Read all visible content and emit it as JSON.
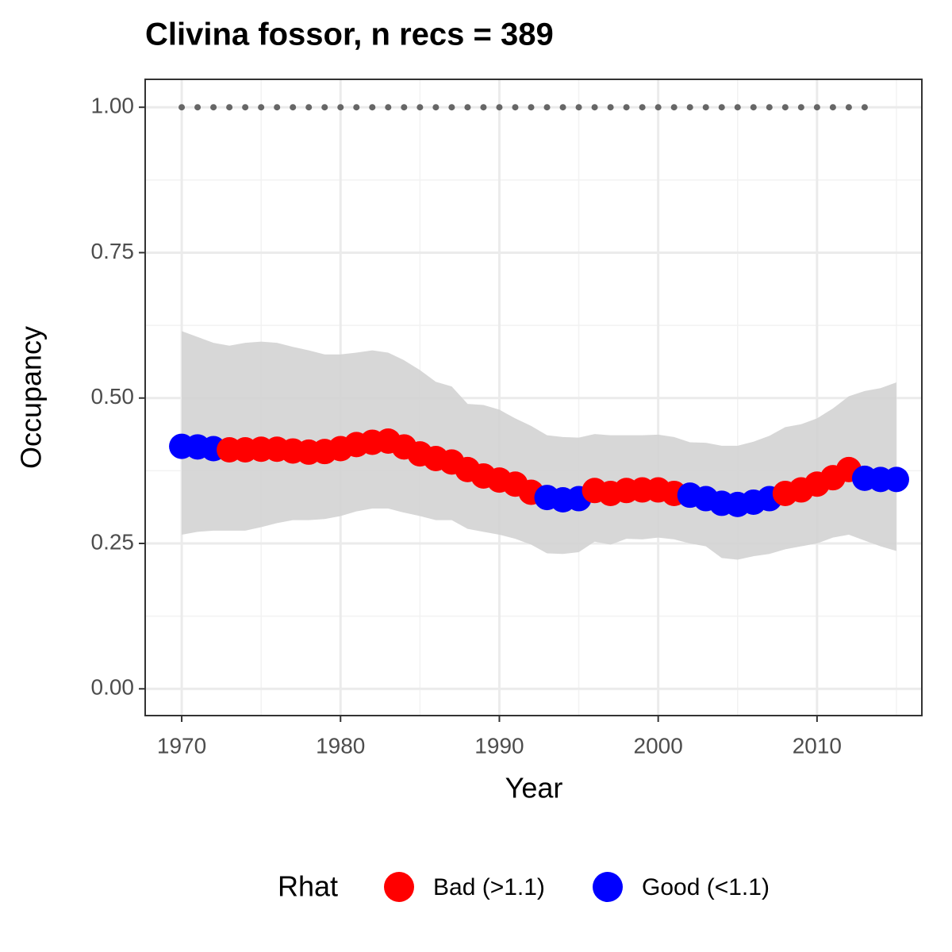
{
  "chart_data": {
    "type": "line",
    "title": "Clivina fossor, n recs = 389",
    "x_label": "Year",
    "y_label": "Occupancy",
    "x": [
      1970,
      1971,
      1972,
      1973,
      1974,
      1975,
      1976,
      1977,
      1978,
      1979,
      1980,
      1981,
      1982,
      1983,
      1984,
      1985,
      1986,
      1987,
      1988,
      1989,
      1990,
      1991,
      1992,
      1993,
      1994,
      1995,
      1996,
      1997,
      1998,
      1999,
      2000,
      2001,
      2002,
      2003,
      2004,
      2005,
      2006,
      2007,
      2008,
      2009,
      2010,
      2011,
      2012,
      2013,
      2014,
      2015
    ],
    "series": [
      {
        "values": [
          0.417,
          0.416,
          0.413,
          0.411,
          0.411,
          0.412,
          0.412,
          0.409,
          0.407,
          0.408,
          0.413,
          0.42,
          0.424,
          0.426,
          0.416,
          0.404,
          0.396,
          0.39,
          0.377,
          0.366,
          0.359,
          0.352,
          0.338,
          0.329,
          0.325,
          0.327,
          0.341,
          0.336,
          0.341,
          0.342,
          0.342,
          0.336,
          0.333,
          0.327,
          0.319,
          0.317,
          0.321,
          0.327,
          0.336,
          0.342,
          0.352,
          0.363,
          0.377,
          0.362,
          0.36,
          0.36
        ],
        "point_colors": [
          "#0000ff",
          "#0000ff",
          "#0000ff",
          "#ff0000",
          "#ff0000",
          "#ff0000",
          "#ff0000",
          "#ff0000",
          "#ff0000",
          "#ff0000",
          "#ff0000",
          "#ff0000",
          "#ff0000",
          "#ff0000",
          "#ff0000",
          "#ff0000",
          "#ff0000",
          "#ff0000",
          "#ff0000",
          "#ff0000",
          "#ff0000",
          "#ff0000",
          "#ff0000",
          "#0000ff",
          "#0000ff",
          "#0000ff",
          "#ff0000",
          "#ff0000",
          "#ff0000",
          "#ff0000",
          "#ff0000",
          "#ff0000",
          "#0000ff",
          "#0000ff",
          "#0000ff",
          "#0000ff",
          "#0000ff",
          "#0000ff",
          "#ff0000",
          "#ff0000",
          "#ff0000",
          "#ff0000",
          "#ff0000",
          "#0000ff",
          "#0000ff",
          "#0000ff"
        ]
      }
    ],
    "ribbon": {
      "color": "#d3d3d3",
      "upper": [
        0.615,
        0.605,
        0.595,
        0.59,
        0.595,
        0.597,
        0.595,
        0.588,
        0.582,
        0.575,
        0.575,
        0.578,
        0.582,
        0.578,
        0.565,
        0.548,
        0.528,
        0.52,
        0.49,
        0.488,
        0.48,
        0.465,
        0.452,
        0.436,
        0.433,
        0.432,
        0.438,
        0.436,
        0.436,
        0.436,
        0.437,
        0.433,
        0.424,
        0.423,
        0.418,
        0.418,
        0.425,
        0.435,
        0.45,
        0.455,
        0.465,
        0.482,
        0.503,
        0.512,
        0.517,
        0.527
      ],
      "lower": [
        0.265,
        0.27,
        0.272,
        0.272,
        0.272,
        0.278,
        0.285,
        0.29,
        0.29,
        0.292,
        0.297,
        0.305,
        0.31,
        0.31,
        0.303,
        0.297,
        0.29,
        0.29,
        0.275,
        0.27,
        0.265,
        0.258,
        0.248,
        0.233,
        0.232,
        0.235,
        0.253,
        0.248,
        0.258,
        0.257,
        0.26,
        0.257,
        0.25,
        0.245,
        0.225,
        0.222,
        0.228,
        0.232,
        0.24,
        0.245,
        0.25,
        0.26,
        0.265,
        0.255,
        0.245,
        0.237
      ]
    },
    "reference": {
      "color": "#666666",
      "values": [
        1,
        1,
        1,
        1,
        1,
        1,
        1,
        1,
        1,
        1,
        1,
        1,
        1,
        1,
        1,
        1,
        1,
        1,
        1,
        1,
        1,
        1,
        1,
        1,
        1,
        1,
        1,
        1,
        1,
        1,
        1,
        1,
        1,
        1,
        1,
        1,
        1,
        1,
        1,
        1,
        1,
        1,
        1,
        1,
        null,
        null
      ]
    },
    "xlim": [
      1967.7,
      2016.6
    ],
    "ylim": [
      -0.046,
      1.048
    ],
    "xticks": [
      1970,
      1980,
      1990,
      2000,
      2010
    ],
    "minor_xticks": [
      1975,
      1985,
      1995,
      2005,
      2015
    ],
    "yticks": [
      {
        "value": 0,
        "label": "0.00"
      },
      {
        "value": 0.25,
        "label": "0.25"
      },
      {
        "value": 0.5,
        "label": "0.50"
      },
      {
        "value": 0.75,
        "label": "0.75"
      },
      {
        "value": 1,
        "label": "1.00"
      }
    ],
    "minor_yticks": [
      0.125,
      0.375,
      0.625,
      0.875
    ],
    "grid": true,
    "legend": {
      "title": "Rhat",
      "position": "bottom",
      "items": [
        {
          "name": "Bad (>1.1)",
          "color": "#ff0000"
        },
        {
          "name": "Good (<1.1)",
          "color": "#0000ff"
        }
      ]
    }
  }
}
